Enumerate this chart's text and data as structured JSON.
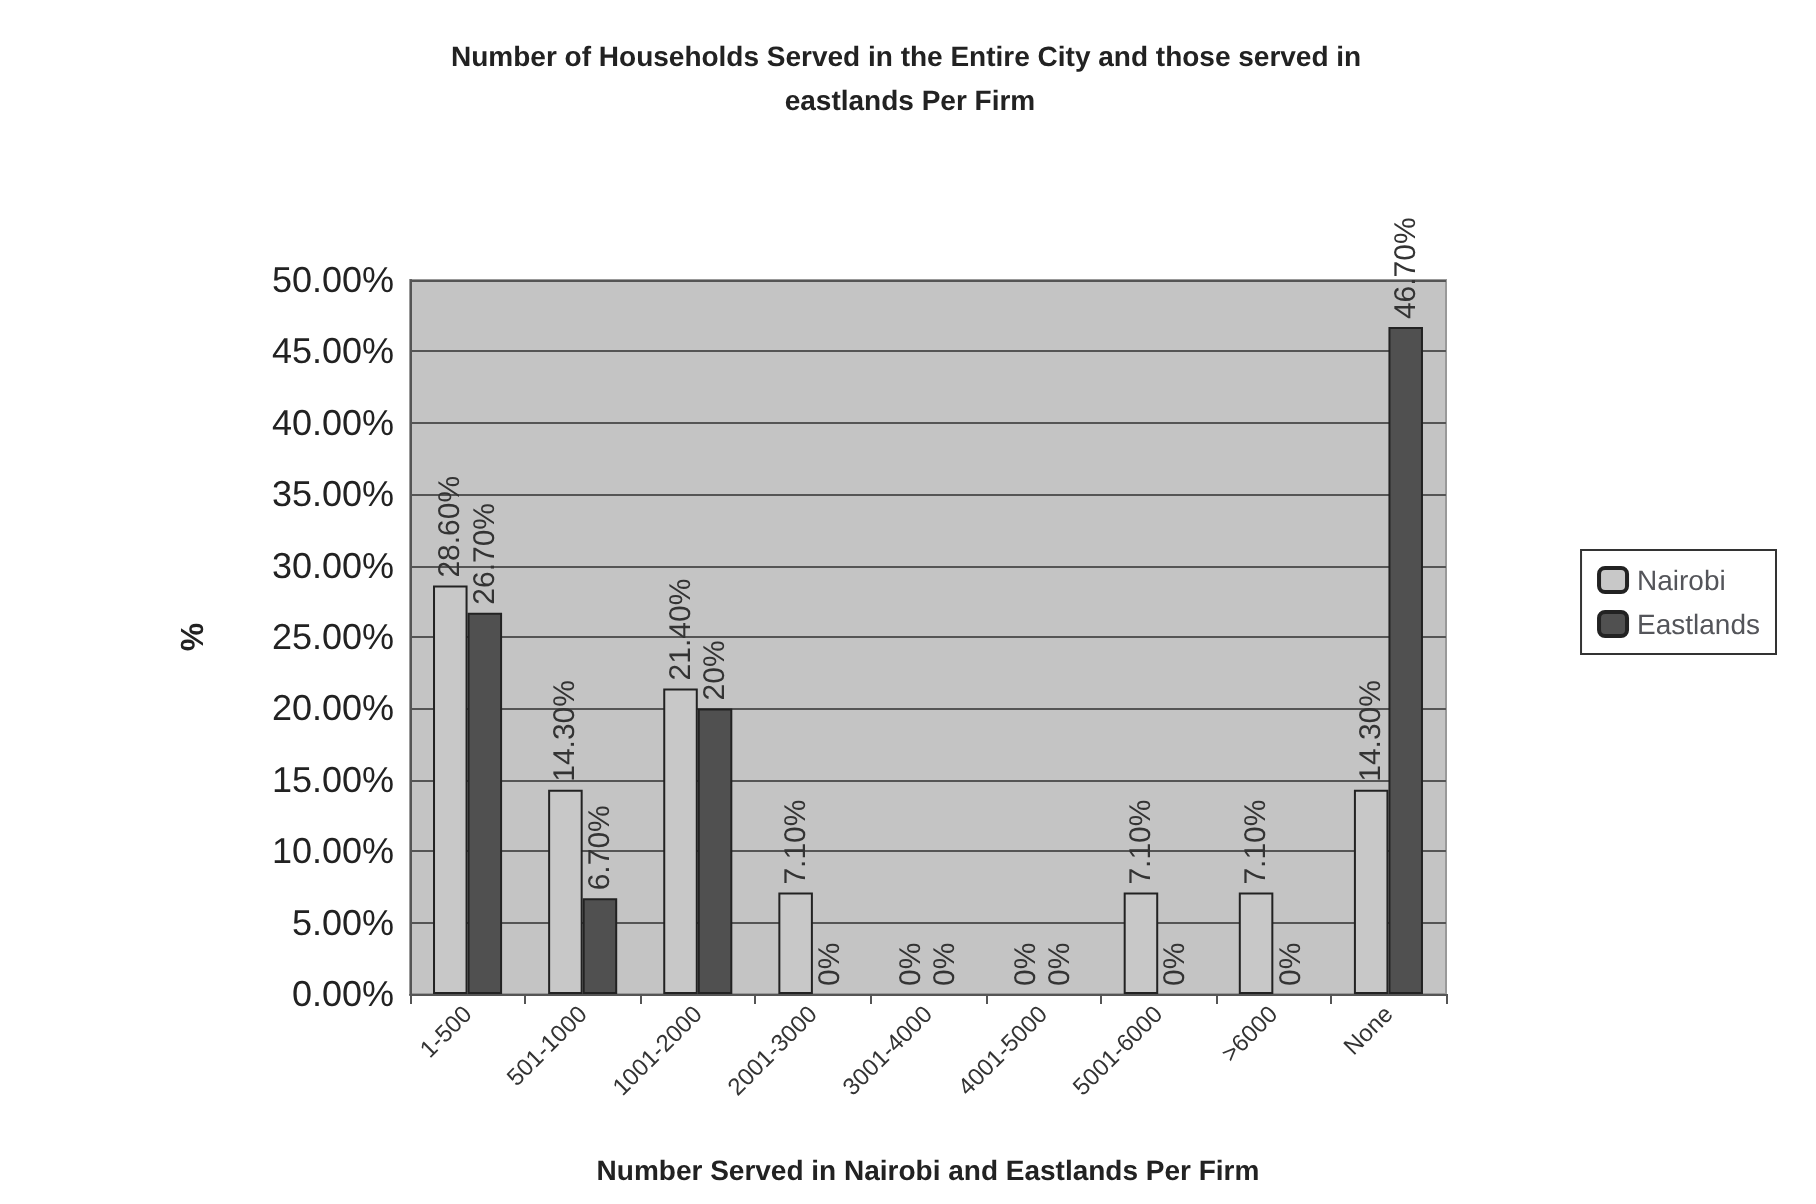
{
  "chart_data": {
    "type": "bar",
    "title": "Number of Households Served in the Entire City and those served in eastlands Per Firm",
    "xlabel": "Number Served in Nairobi and Eastlands Per Firm",
    "ylabel": "%",
    "categories": [
      "1-500",
      "501-1000",
      "1001-2000",
      "2001-3000",
      "3001-4000",
      "4001-5000",
      "5001-6000",
      ">6000",
      "None"
    ],
    "series": [
      {
        "name": "Nairobi",
        "color": "#c8c8c8",
        "values": [
          28.6,
          14.3,
          21.4,
          7.1,
          0,
          0,
          7.1,
          7.1,
          14.3
        ],
        "value_labels": [
          "28.60%",
          "14.30%",
          "21.40%",
          "7.10%",
          "0%",
          "0%",
          "7.10%",
          "7.10%",
          "14.30%"
        ]
      },
      {
        "name": "Eastlands",
        "color": "#505050",
        "values": [
          26.7,
          6.7,
          20,
          0,
          0,
          0,
          0,
          0,
          46.7
        ],
        "value_labels": [
          "26.70%",
          "6.70%",
          "20%",
          "0%",
          "0%",
          "0%",
          "0%",
          "0%",
          "46.70%"
        ]
      }
    ],
    "ylim": [
      0,
      50
    ],
    "yticks": [
      {
        "value": 0,
        "label": "0.00%"
      },
      {
        "value": 5,
        "label": "5.00%"
      },
      {
        "value": 10,
        "label": "10.00%"
      },
      {
        "value": 15,
        "label": "15.00%"
      },
      {
        "value": 20,
        "label": "20.00%"
      },
      {
        "value": 25,
        "label": "25.00%"
      },
      {
        "value": 30,
        "label": "30.00%"
      },
      {
        "value": 35,
        "label": "35.00%"
      },
      {
        "value": 40,
        "label": "40.00%"
      },
      {
        "value": 45,
        "label": "45.00%"
      },
      {
        "value": 50,
        "label": "50.00%"
      }
    ],
    "grid": "y",
    "legend": "right"
  }
}
